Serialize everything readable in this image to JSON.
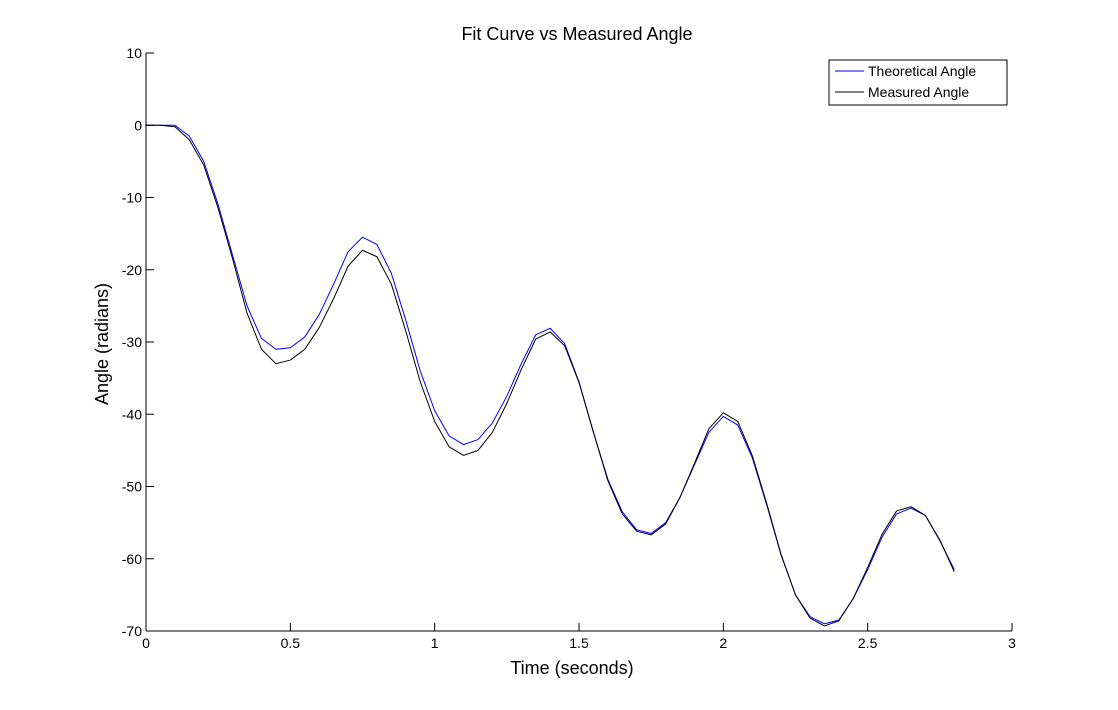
{
  "chart_data": {
    "type": "line",
    "title": "Fit Curve vs Measured Angle",
    "xlabel": "Time (seconds)",
    "ylabel": "Angle (radians)",
    "xlim": [
      0,
      3
    ],
    "ylim": [
      -70,
      10
    ],
    "xticks": [
      0,
      0.5,
      1,
      1.5,
      2,
      2.5,
      3
    ],
    "xtick_labels": [
      "0",
      "0.5",
      "1",
      "1.5",
      "2",
      "2.5",
      "3"
    ],
    "yticks": [
      10,
      0,
      -10,
      -20,
      -30,
      -40,
      -50,
      -60,
      -70
    ],
    "ytick_labels": [
      "10",
      "0",
      "-10",
      "-20",
      "-30",
      "-40",
      "-50",
      "-60",
      "-70"
    ],
    "grid": false,
    "legend_position": "top-right",
    "series": [
      {
        "name": "Theoretical Angle",
        "color": "#0000ff",
        "points": [
          [
            0,
            0
          ],
          [
            0.05,
            0.0
          ],
          [
            0.1,
            0.0
          ],
          [
            0.15,
            -1.5
          ],
          [
            0.2,
            -5
          ],
          [
            0.25,
            -11
          ],
          [
            0.3,
            -18
          ],
          [
            0.35,
            -25
          ],
          [
            0.4,
            -29.5
          ],
          [
            0.45,
            -31.0
          ],
          [
            0.5,
            -30.8
          ],
          [
            0.55,
            -29.3
          ],
          [
            0.6,
            -26.2
          ],
          [
            0.65,
            -22.0
          ],
          [
            0.7,
            -17.5
          ],
          [
            0.75,
            -15.5
          ],
          [
            0.8,
            -16.5
          ],
          [
            0.85,
            -20.5
          ],
          [
            0.9,
            -27.0
          ],
          [
            0.95,
            -34.0
          ],
          [
            1.0,
            -39.5
          ],
          [
            1.05,
            -43.0
          ],
          [
            1.1,
            -44.2
          ],
          [
            1.15,
            -43.5
          ],
          [
            1.2,
            -41.2
          ],
          [
            1.25,
            -37.5
          ],
          [
            1.3,
            -33.0
          ],
          [
            1.35,
            -29.0
          ],
          [
            1.4,
            -28.1
          ],
          [
            1.45,
            -30.2
          ],
          [
            1.5,
            -35.5
          ],
          [
            1.55,
            -42.5
          ],
          [
            1.6,
            -49.0
          ],
          [
            1.65,
            -53.5
          ],
          [
            1.7,
            -56.0
          ],
          [
            1.75,
            -56.5
          ],
          [
            1.8,
            -55.0
          ],
          [
            1.85,
            -51.5
          ],
          [
            1.9,
            -47.0
          ],
          [
            1.95,
            -42.5
          ],
          [
            2.0,
            -40.3
          ],
          [
            2.05,
            -41.5
          ],
          [
            2.1,
            -46.0
          ],
          [
            2.15,
            -52.5
          ],
          [
            2.2,
            -59.5
          ],
          [
            2.25,
            -65.0
          ],
          [
            2.3,
            -68.0
          ],
          [
            2.35,
            -69.0
          ],
          [
            2.4,
            -68.5
          ],
          [
            2.45,
            -65.5
          ],
          [
            2.5,
            -61.5
          ],
          [
            2.55,
            -57.0
          ],
          [
            2.6,
            -53.8
          ],
          [
            2.65,
            -53.0
          ],
          [
            2.7,
            -54.0
          ],
          [
            2.75,
            -57.5
          ],
          [
            2.8,
            -61.5
          ]
        ]
      },
      {
        "name": "Measured Angle",
        "color": "#000000",
        "points": [
          [
            0,
            0
          ],
          [
            0.05,
            0.0
          ],
          [
            0.1,
            -0.2
          ],
          [
            0.15,
            -2.0
          ],
          [
            0.2,
            -5.5
          ],
          [
            0.25,
            -11.5
          ],
          [
            0.3,
            -18.5
          ],
          [
            0.35,
            -26
          ],
          [
            0.4,
            -31.0
          ],
          [
            0.45,
            -33.0
          ],
          [
            0.5,
            -32.5
          ],
          [
            0.55,
            -31.0
          ],
          [
            0.6,
            -28.0
          ],
          [
            0.65,
            -24.0
          ],
          [
            0.7,
            -19.5
          ],
          [
            0.75,
            -17.3
          ],
          [
            0.8,
            -18.2
          ],
          [
            0.85,
            -22.0
          ],
          [
            0.9,
            -28.5
          ],
          [
            0.95,
            -35.5
          ],
          [
            1.0,
            -41.0
          ],
          [
            1.05,
            -44.5
          ],
          [
            1.1,
            -45.7
          ],
          [
            1.15,
            -45.0
          ],
          [
            1.2,
            -42.5
          ],
          [
            1.25,
            -38.5
          ],
          [
            1.3,
            -33.8
          ],
          [
            1.35,
            -29.6
          ],
          [
            1.4,
            -28.6
          ],
          [
            1.45,
            -30.5
          ],
          [
            1.5,
            -35.6
          ],
          [
            1.55,
            -42.5
          ],
          [
            1.6,
            -49.2
          ],
          [
            1.65,
            -53.8
          ],
          [
            1.7,
            -56.2
          ],
          [
            1.75,
            -56.7
          ],
          [
            1.8,
            -55.2
          ],
          [
            1.85,
            -51.5
          ],
          [
            1.9,
            -46.8
          ],
          [
            1.95,
            -42.0
          ],
          [
            2.0,
            -39.8
          ],
          [
            2.05,
            -41.0
          ],
          [
            2.1,
            -45.7
          ],
          [
            2.15,
            -52.3
          ],
          [
            2.2,
            -59.4
          ],
          [
            2.25,
            -65.0
          ],
          [
            2.3,
            -68.2
          ],
          [
            2.35,
            -69.3
          ],
          [
            2.4,
            -68.6
          ],
          [
            2.45,
            -65.5
          ],
          [
            2.5,
            -61.2
          ],
          [
            2.55,
            -56.6
          ],
          [
            2.6,
            -53.4
          ],
          [
            2.65,
            -52.8
          ],
          [
            2.7,
            -54.0
          ],
          [
            2.75,
            -57.4
          ],
          [
            2.8,
            -61.8
          ]
        ]
      }
    ]
  }
}
